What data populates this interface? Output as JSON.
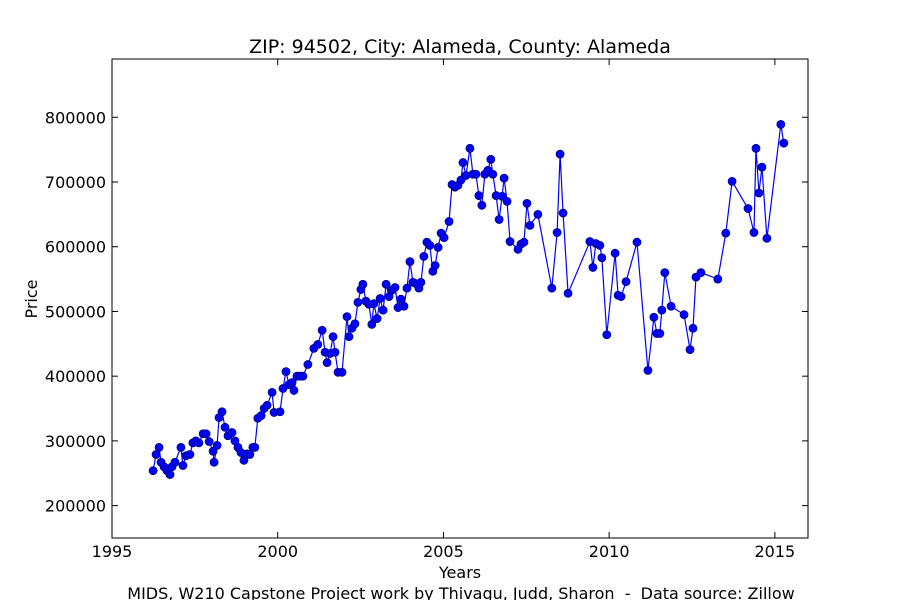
{
  "chart_data": {
    "type": "line",
    "title": "ZIP: 94502, City: Alameda, County: Alameda",
    "xlabel": "Years",
    "ylabel": "Price",
    "footer": "MIDS, W210 Capstone Project work by Thivagu, Judd, Sharon  -  Data source: Zillow",
    "color": "#0000ff",
    "xlim": [
      1995,
      2016
    ],
    "ylim": [
      150000,
      890000
    ],
    "xticks": [
      1995,
      2000,
      2005,
      2010,
      2015
    ],
    "yticks": [
      200000,
      300000,
      400000,
      500000,
      600000,
      700000,
      800000
    ],
    "x": [
      1996.24,
      1996.33,
      1996.42,
      1996.48,
      1996.57,
      1996.66,
      1996.75,
      1996.81,
      1996.9,
      1997.08,
      1997.14,
      1997.23,
      1997.35,
      1997.44,
      1997.53,
      1997.62,
      1997.75,
      1997.84,
      1997.93,
      1998.05,
      1998.08,
      1998.17,
      1998.23,
      1998.32,
      1998.41,
      1998.5,
      1998.62,
      1998.71,
      1998.8,
      1998.89,
      1998.98,
      1999.07,
      1999.16,
      1999.25,
      1999.31,
      1999.4,
      1999.5,
      1999.59,
      1999.68,
      1999.83,
      1999.89,
      2000.07,
      2000.16,
      2000.25,
      2000.34,
      2000.43,
      2000.49,
      2000.58,
      2000.67,
      2000.76,
      2000.91,
      2001.09,
      2001.21,
      2001.34,
      2001.43,
      2001.49,
      2001.58,
      2001.67,
      2001.73,
      2001.82,
      2001.94,
      2002.09,
      2002.15,
      2002.24,
      2002.33,
      2002.42,
      2002.51,
      2002.57,
      2002.66,
      2002.75,
      2002.84,
      2002.9,
      2003.0,
      2003.09,
      2003.18,
      2003.27,
      2003.36,
      2003.45,
      2003.54,
      2003.63,
      2003.72,
      2003.81,
      2003.9,
      2003.99,
      2004.08,
      2004.17,
      2004.26,
      2004.32,
      2004.41,
      2004.5,
      2004.59,
      2004.68,
      2004.75,
      2004.84,
      2004.93,
      2005.02,
      2005.17,
      2005.26,
      2005.35,
      2005.44,
      2005.53,
      2005.59,
      2005.68,
      2005.8,
      2005.89,
      2005.98,
      2006.07,
      2006.16,
      2006.25,
      2006.34,
      2006.43,
      2006.49,
      2006.59,
      2006.68,
      2006.77,
      2006.83,
      2006.92,
      2007.01,
      2007.25,
      2007.34,
      2007.43,
      2007.52,
      2007.61,
      2007.85,
      2008.27,
      2008.43,
      2008.52,
      2008.61,
      2008.76,
      2009.42,
      2009.51,
      2009.6,
      2009.72,
      2009.78,
      2009.93,
      2010.18,
      2010.27,
      2010.36,
      2010.51,
      2010.84,
      2011.17,
      2011.35,
      2011.44,
      2011.53,
      2011.59,
      2011.68,
      2011.87,
      2012.26,
      2012.44,
      2012.53,
      2012.62,
      2012.77,
      2013.28,
      2013.52,
      2013.71,
      2014.19,
      2014.37,
      2014.43,
      2014.52,
      2014.61,
      2014.76,
      2015.18,
      2015.27
    ],
    "values": [
      254000,
      279000,
      290000,
      267000,
      260000,
      254000,
      248000,
      260000,
      267000,
      290000,
      262000,
      277000,
      279000,
      297000,
      300000,
      297000,
      311000,
      311000,
      299000,
      284000,
      267000,
      293000,
      336000,
      345000,
      321000,
      308000,
      313000,
      300000,
      290000,
      282000,
      270000,
      280000,
      279000,
      290000,
      290000,
      335000,
      339000,
      350000,
      355000,
      375000,
      344000,
      345000,
      381000,
      407000,
      387000,
      390000,
      378000,
      400000,
      400000,
      400000,
      418000,
      443000,
      449000,
      471000,
      437000,
      421000,
      435000,
      461000,
      437000,
      406000,
      406000,
      492000,
      461000,
      474000,
      481000,
      514000,
      534000,
      542000,
      516000,
      511000,
      480000,
      512000,
      489000,
      520000,
      502000,
      542000,
      523000,
      533000,
      537000,
      506000,
      519000,
      508000,
      536000,
      577000,
      545000,
      543000,
      536000,
      545000,
      585000,
      607000,
      602000,
      562000,
      571000,
      599000,
      621000,
      614000,
      639000,
      696000,
      692000,
      695000,
      703000,
      730000,
      710000,
      752000,
      712000,
      712000,
      679000,
      664000,
      712000,
      718000,
      735000,
      712000,
      679000,
      642000,
      678000,
      706000,
      670000,
      608000,
      596000,
      604000,
      607000,
      667000,
      633000,
      650000,
      536000,
      622000,
      743000,
      652000,
      528000,
      608000,
      568000,
      605000,
      602000,
      583000,
      464000,
      590000,
      525000,
      523000,
      546000,
      607000,
      409000,
      491000,
      466000,
      466000,
      502000,
      560000,
      508000,
      495000,
      441000,
      474000,
      553000,
      560000,
      550000,
      621000,
      701000,
      659000,
      622000,
      752000,
      683000,
      723000,
      613000,
      789000,
      760000
    ]
  }
}
